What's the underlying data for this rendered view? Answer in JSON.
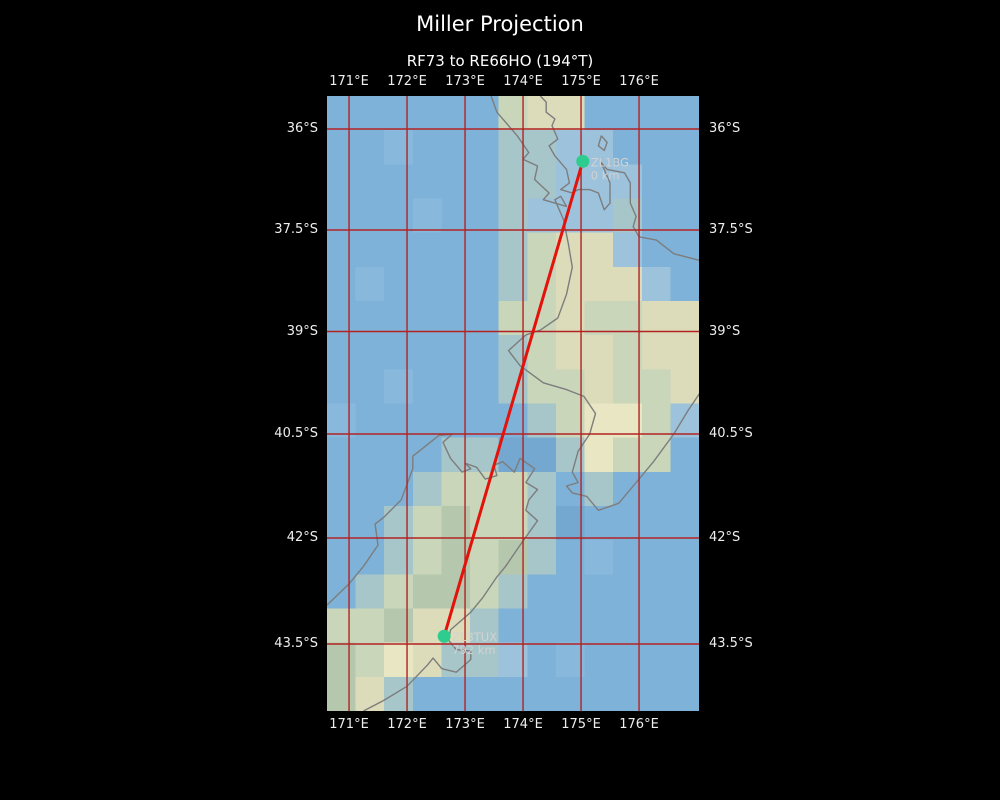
{
  "figure": {
    "title": "Miller Projection",
    "subtitle": "RF73 to RE66HO (194°T)"
  },
  "colors": {
    "background": "#000000",
    "title_text": "#ffffff",
    "tick_text": "#eeeeee",
    "graticule": "#b22222",
    "coastline": "#7d7d7d",
    "track": "#e3120b",
    "marker": "#2ecc8e",
    "marker_label": "#d2d2d2"
  },
  "axes": {
    "lon_tick_labels": [
      "171°E",
      "172°E",
      "173°E",
      "174°E",
      "175°E",
      "176°E"
    ],
    "lon_tick_values": [
      171,
      172,
      173,
      174,
      175,
      176
    ],
    "lat_tick_labels": [
      "36°S",
      "37.5°S",
      "39°S",
      "40.5°S",
      "42°S",
      "43.5°S"
    ],
    "lat_tick_values": [
      36,
      37.5,
      39,
      40.5,
      42,
      43.5
    ]
  },
  "map": {
    "raster": {
      "palette": {
        "O": "#7fb2d8",
        "P": "#88b8dc",
        "Q": "#74a8d0",
        "S": "#9cc2dc",
        "T": "#a7c6c9",
        "G": "#c9d6b9",
        "V": "#b5c8ad",
        "Y": "#dcdcba",
        "B": "#e9e6c3"
      },
      "rows": [
        "OOOOOOGYYOOOO",
        "OOPOOOTTSSOOO",
        "OOOOOOTTSSSOO",
        "OOOPOOTSSSTOO",
        "OOOOOOTGYYSOO",
        "OPOOOOTGYYYSO",
        "OOOOOOGGYGGYY",
        "OOOOOOTGYYGYY",
        "OOPOOOTGGYGGY",
        "POOOOOOTGBBGS",
        "OOOOTTQQTBGGO",
        "OOOTGGGTOTOOO",
        "OOTGVGGTQOOOO",
        "OOTGVGVTOPOOO",
        "OTGVVGTOOOOOO",
        "GGVYYTOOOOOOO",
        "VGBYTTSOPOOOO",
        "VYTOOOOOOOOOO"
      ]
    },
    "coastlines": [
      [
        [
          173.45,
          35.51
        ],
        [
          173.55,
          35.75
        ],
        [
          173.9,
          36.1
        ],
        [
          174.1,
          36.35
        ],
        [
          174.0,
          36.45
        ],
        [
          174.25,
          36.55
        ],
        [
          174.2,
          36.75
        ],
        [
          174.45,
          36.95
        ],
        [
          174.35,
          37.05
        ],
        [
          174.75,
          37.15
        ],
        [
          174.65,
          37.0
        ],
        [
          174.55,
          37.05
        ],
        [
          174.7,
          37.35
        ],
        [
          174.78,
          37.7
        ],
        [
          174.85,
          38.05
        ],
        [
          174.75,
          38.45
        ],
        [
          174.6,
          38.8
        ],
        [
          174.3,
          38.98
        ],
        [
          174.05,
          39.05
        ],
        [
          173.75,
          39.28
        ],
        [
          173.95,
          39.5
        ],
        [
          174.35,
          39.75
        ],
        [
          174.75,
          39.85
        ],
        [
          175.05,
          39.95
        ],
        [
          175.25,
          40.2
        ],
        [
          175.15,
          40.5
        ],
        [
          174.95,
          40.75
        ],
        [
          174.85,
          41.05
        ],
        [
          174.95,
          41.2
        ],
        [
          174.75,
          41.25
        ],
        [
          174.85,
          41.35
        ],
        [
          175.1,
          41.4
        ],
        [
          175.3,
          41.6
        ],
        [
          175.65,
          41.5
        ],
        [
          176.0,
          41.15
        ],
        [
          176.25,
          40.9
        ],
        [
          176.6,
          40.5
        ],
        [
          176.85,
          40.15
        ],
        [
          177.05,
          39.9
        ]
      ],
      [
        [
          177.05,
          37.95
        ],
        [
          176.6,
          37.85
        ],
        [
          176.3,
          37.65
        ],
        [
          176.0,
          37.6
        ],
        [
          175.9,
          37.45
        ],
        [
          175.95,
          37.3
        ],
        [
          175.85,
          37.1
        ],
        [
          175.85,
          36.8
        ],
        [
          175.75,
          36.65
        ],
        [
          175.45,
          36.6
        ],
        [
          175.35,
          36.5
        ],
        [
          175.5,
          36.8
        ],
        [
          175.5,
          37.1
        ],
        [
          175.4,
          37.2
        ],
        [
          175.3,
          36.95
        ],
        [
          175.15,
          36.9
        ],
        [
          174.95,
          36.9
        ],
        [
          174.85,
          36.95
        ],
        [
          174.65,
          36.9
        ],
        [
          174.8,
          36.8
        ],
        [
          174.75,
          36.6
        ],
        [
          174.55,
          36.4
        ],
        [
          174.45,
          36.25
        ],
        [
          174.6,
          36.15
        ],
        [
          174.5,
          35.95
        ],
        [
          174.55,
          35.85
        ],
        [
          174.4,
          35.75
        ],
        [
          174.4,
          35.6
        ],
        [
          174.3,
          35.51
        ]
      ],
      [
        [
          175.35,
          36.1
        ],
        [
          175.45,
          36.2
        ],
        [
          175.4,
          36.32
        ],
        [
          175.3,
          36.25
        ],
        [
          175.35,
          36.1
        ]
      ],
      [
        [
          170.62,
          42.95
        ],
        [
          171.0,
          42.65
        ],
        [
          171.25,
          42.4
        ],
        [
          171.5,
          42.1
        ],
        [
          171.45,
          41.8
        ],
        [
          171.6,
          41.7
        ],
        [
          171.9,
          41.45
        ],
        [
          172.1,
          41.0
        ],
        [
          172.1,
          40.82
        ],
        [
          172.55,
          40.52
        ],
        [
          172.78,
          40.5
        ],
        [
          172.62,
          40.62
        ],
        [
          172.75,
          40.85
        ],
        [
          172.95,
          41.05
        ],
        [
          173.1,
          41.0
        ],
        [
          173.0,
          40.92
        ],
        [
          173.2,
          40.98
        ],
        [
          173.35,
          41.15
        ],
        [
          173.55,
          41.1
        ],
        [
          173.5,
          40.95
        ],
        [
          173.65,
          40.9
        ],
        [
          173.85,
          41.05
        ],
        [
          173.95,
          40.85
        ],
        [
          174.2,
          41.0
        ],
        [
          174.05,
          41.2
        ],
        [
          174.25,
          41.3
        ],
        [
          174.1,
          41.45
        ],
        [
          174.05,
          41.6
        ],
        [
          174.25,
          41.75
        ],
        [
          173.95,
          42.1
        ],
        [
          173.7,
          42.4
        ],
        [
          173.55,
          42.55
        ],
        [
          173.3,
          42.85
        ],
        [
          173.1,
          43.05
        ],
        [
          172.75,
          43.3
        ],
        [
          172.72,
          43.45
        ],
        [
          172.85,
          43.58
        ],
        [
          173.1,
          43.6
        ],
        [
          173.1,
          43.72
        ],
        [
          172.85,
          43.9
        ],
        [
          172.6,
          43.85
        ],
        [
          172.45,
          43.7
        ],
        [
          172.35,
          43.8
        ],
        [
          172.0,
          44.1
        ],
        [
          171.6,
          44.3
        ],
        [
          171.25,
          44.45
        ]
      ]
    ],
    "markers": [
      {
        "name": "ZL1BG",
        "distance": "0 km",
        "lon": 175.03,
        "lat": 36.48
      },
      {
        "name": "ZL3TUX",
        "distance": "792 km",
        "lon": 172.64,
        "lat": 43.39
      }
    ]
  }
}
